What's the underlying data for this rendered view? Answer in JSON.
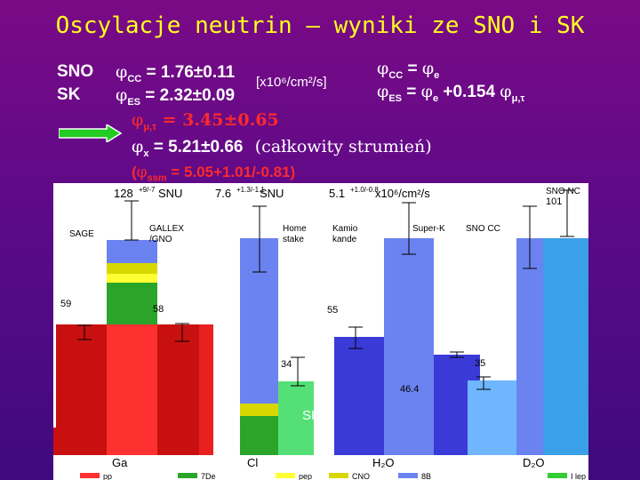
{
  "slide": {
    "title": "Oscylacje neutrin – wyniki ze SNO i SK",
    "labels": {
      "sno": "SNO",
      "sk": "SK"
    },
    "phi": "φ",
    "cc": {
      "sub": "CC",
      "value": "= 1.76±0.11"
    },
    "es": {
      "sub": "ES",
      "value": "= 2.32±0.09"
    },
    "units": "[x10⁶/cm²/s]",
    "relations": {
      "cc_lhs_sub": "CC",
      "cc_eq": " = ",
      "cc_rhs_sub": "e",
      "es_lhs_sub": "ES",
      "es_eq": " = ",
      "es_rhs_sub": "e",
      "es_tail": " +0.154 ",
      "es_tail_sub": "μ,τ"
    },
    "mutau": {
      "sub": "μ,τ",
      "value": " = 3.45±0.65"
    },
    "x": {
      "sub": "x",
      "value": " = 5.21±0.66",
      "note": "(całkowity strumień)"
    },
    "ssm": {
      "open": "(",
      "sub": "ssm",
      "value": " = 5.05+1.01/-0.81)"
    },
    "arrow_color": "#22cc22"
  },
  "chart_data": {
    "type": "bar",
    "experiments": [
      {
        "name": "SAGE",
        "target": "Ga",
        "value": "59",
        "err": "+5/-6"
      },
      {
        "name": "GALLEX/GNO",
        "target": "Ga",
        "value": "58",
        "err": "+5/-5"
      },
      {
        "name": "Homestake",
        "target": "Cl",
        "value": "34",
        "err": "+3/-3"
      },
      {
        "name": "Kamiokande",
        "target": "H2O",
        "value": "55",
        "err": "+8/-8"
      },
      {
        "name": "Super-K",
        "target": "H2O",
        "value": "46.4",
        "err": "+1.7/-1.5"
      },
      {
        "name": "SNO CC",
        "target": "D2O",
        "value": "35",
        "err": "+2/-2"
      },
      {
        "name": "SNO NC",
        "target": "D2O",
        "value": "101",
        "err": "+13/-13"
      }
    ],
    "predictions": {
      "ga": "128",
      "ga_err": "+9/-7",
      "ga_unit": "SNU",
      "cl": "7.6",
      "cl_err": "+1.3/-1.1",
      "cl_unit": "SNU",
      "water": "5.1",
      "water_err": "+1.0/-0.8",
      "water_unit": "x10⁶/cm²/s"
    },
    "labels": {
      "sage": "SAGE",
      "gallex": "GALLEX\n/GNO",
      "home": "Home\nstake",
      "kamio": "Kamio\nkande",
      "superk": "Super-K",
      "snocc": "SNO CC",
      "snonc": "SNO NC",
      "sk_overlay": "SK"
    },
    "targets": {
      "ga": "Ga",
      "cl": "Cl",
      "h2o": "H₂O",
      "d2o": "D₂O"
    },
    "legend": [
      {
        "label": "pp",
        "color": "#ff3030"
      },
      {
        "label": "⁷Be",
        "color": "#2aa52a"
      },
      {
        "label": "pep",
        "color": "#ffff33"
      },
      {
        "label": "CNO",
        "color": "#d8d800"
      },
      {
        "label": "⁸B",
        "color": "#6b83f0"
      },
      {
        "label": "hep",
        "color": "#33cc33"
      }
    ],
    "legend_text": {
      "pp": "pp",
      "be7": "7De",
      "pep": "pep",
      "cno": "CNO",
      "b8": "8B",
      "hep": "I lep"
    }
  }
}
